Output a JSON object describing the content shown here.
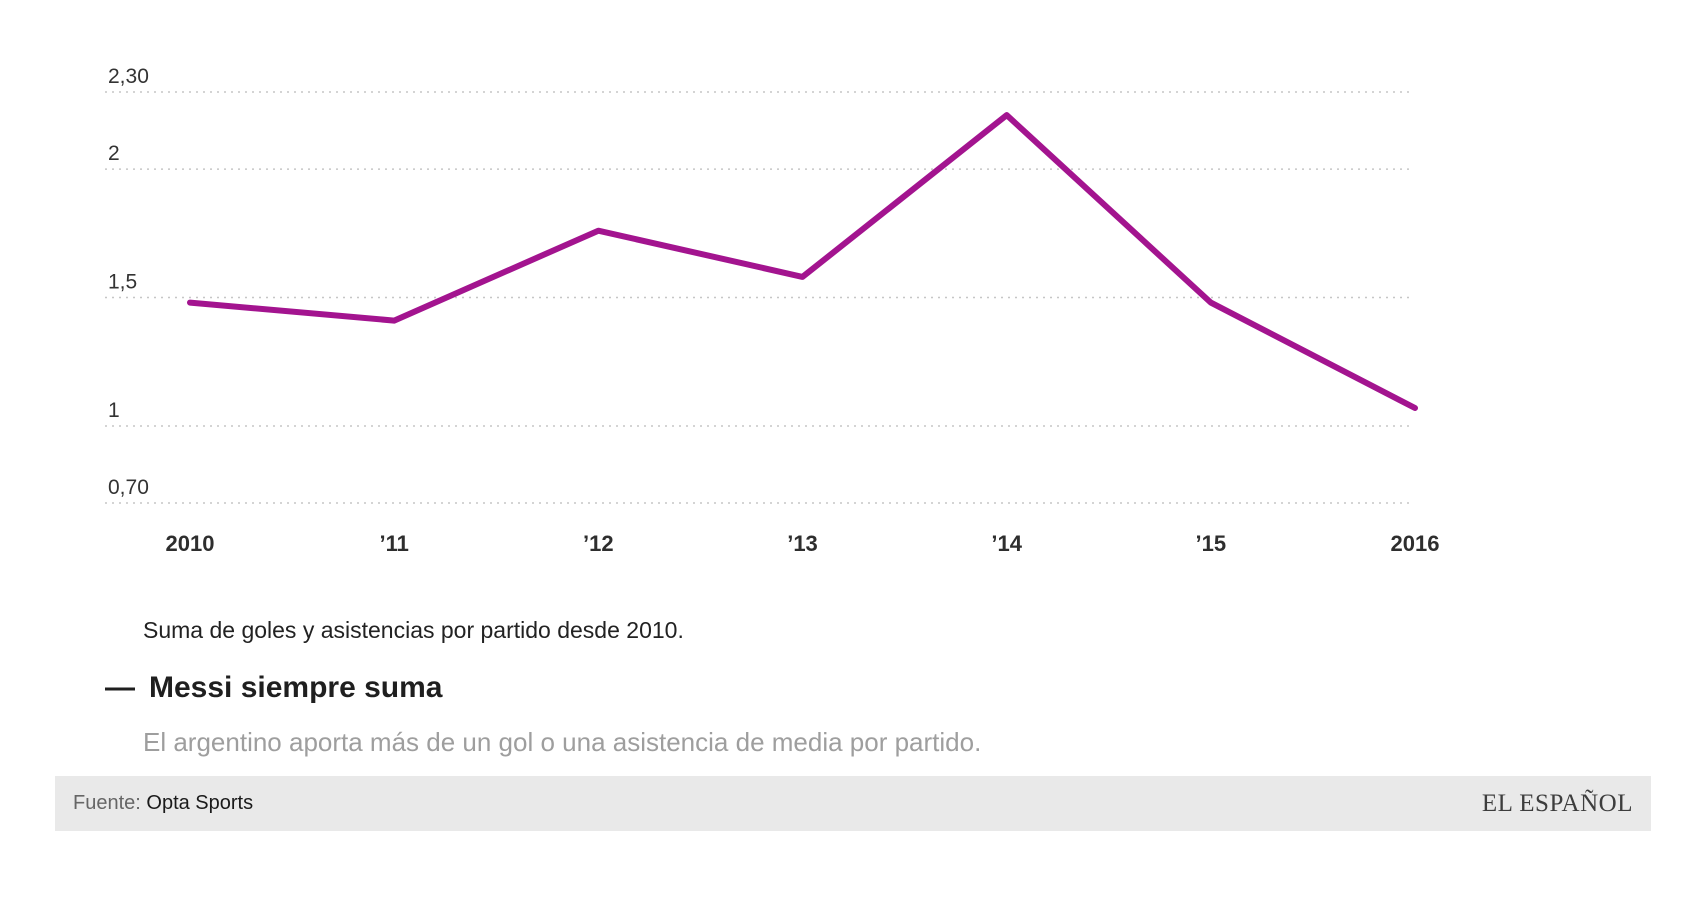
{
  "chart_data": {
    "type": "line",
    "title": "Messi siempre suma",
    "caption": "Suma de goles y asistencias por partido desde 2010.",
    "x": [
      "2010",
      "’11",
      "’12",
      "’13",
      "’14",
      "’15",
      "2016"
    ],
    "values": [
      1.48,
      1.41,
      1.76,
      1.58,
      2.21,
      1.48,
      1.07
    ],
    "y_ticks": [
      {
        "value": 2.3,
        "label": "2,30"
      },
      {
        "value": 2.0,
        "label": "2"
      },
      {
        "value": 1.5,
        "label": "1,5"
      },
      {
        "value": 1.0,
        "label": "1"
      },
      {
        "value": 0.7,
        "label": "0,70"
      }
    ],
    "ylim": [
      0.7,
      2.3
    ],
    "grid": true,
    "legend": "none",
    "line_color": "#a3148f"
  },
  "title": {
    "dash": "—",
    "text": "Messi siempre suma"
  },
  "subtitle": "El argentino aporta más de un gol o una asistencia de media por partido.",
  "footer": {
    "source_label": "Fuente:",
    "source_value": "Opta Sports",
    "brand": "EL ESPAÑOL"
  },
  "colors": {
    "line": "#a3148f",
    "grid": "#c6c6c6",
    "footer_bg": "#e9e9e9"
  }
}
